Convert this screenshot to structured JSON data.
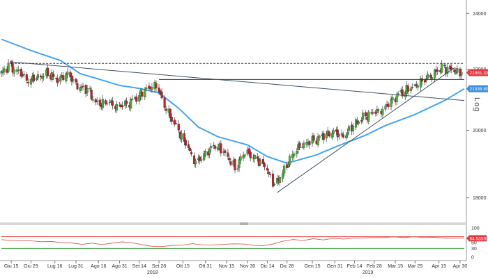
{
  "toolbar": {
    "icons": [
      "plus-icon",
      "pencil-icon",
      "zoom-icon",
      "magnifier-icon"
    ],
    "badge": "0"
  },
  "price_axis": {
    "scale": "log",
    "label": "Log",
    "ticks": [
      "24000",
      "22000",
      "20000",
      "18000"
    ],
    "current_price": "21881.3301",
    "ma_value": "21338.8008",
    "current_color": "#e8383d",
    "ma_color": "#3a8fe0"
  },
  "rsi_axis": {
    "ticks": [
      "100",
      "50",
      "30",
      "0"
    ],
    "value": "64.5359",
    "levels": [
      70,
      30
    ]
  },
  "x_axis": {
    "labels": [
      "Giu 15",
      "Giu 29",
      "Lug 16",
      "Lug 31",
      "Ago 16",
      "Ago 31",
      "Set 14",
      "Set 28",
      "Ott 15",
      "Ott 31",
      "Nov 15",
      "Nov 30",
      "Dic 14",
      "Dic 28",
      "Gen 15",
      "Gen 31",
      "Feb 14",
      "Feb 28",
      "Mar 15",
      "Mar 29",
      "Apr 15",
      "Apr 30"
    ],
    "years": [
      "2018",
      "2019"
    ]
  },
  "colors": {
    "up_candle": "#4caa3a",
    "down_candle": "#b8232a",
    "moving_average": "#42a5f5",
    "trendline": "#3d4f63",
    "rsi_line": "#e25757",
    "rsi_upper": "#e53935",
    "rsi_lower": "#43a047"
  },
  "chart_data": {
    "type": "candlestick",
    "y_scale": "log",
    "ylim": [
      17400,
      24400
    ],
    "x_range": [
      "2018-06-08",
      "2019-05-03"
    ],
    "close_series": [
      {
        "date": "2018-06-08",
        "close": 21800
      },
      {
        "date": "2018-06-15",
        "close": 22100
      },
      {
        "date": "2018-06-22",
        "close": 21900
      },
      {
        "date": "2018-06-29",
        "close": 21600
      },
      {
        "date": "2018-07-06",
        "close": 21750
      },
      {
        "date": "2018-07-13",
        "close": 21850
      },
      {
        "date": "2018-07-20",
        "close": 21650
      },
      {
        "date": "2018-07-27",
        "close": 21850
      },
      {
        "date": "2018-08-03",
        "close": 21400
      },
      {
        "date": "2018-08-10",
        "close": 21300
      },
      {
        "date": "2018-08-17",
        "close": 20800
      },
      {
        "date": "2018-08-24",
        "close": 20900
      },
      {
        "date": "2018-08-31",
        "close": 20750
      },
      {
        "date": "2018-09-07",
        "close": 20850
      },
      {
        "date": "2018-09-14",
        "close": 21050
      },
      {
        "date": "2018-09-21",
        "close": 21350
      },
      {
        "date": "2018-09-28",
        "close": 21450
      },
      {
        "date": "2018-10-05",
        "close": 20650
      },
      {
        "date": "2018-10-12",
        "close": 20100
      },
      {
        "date": "2018-10-19",
        "close": 19550
      },
      {
        "date": "2018-10-26",
        "close": 19000
      },
      {
        "date": "2018-11-02",
        "close": 19300
      },
      {
        "date": "2018-11-09",
        "close": 19550
      },
      {
        "date": "2018-11-16",
        "close": 19300
      },
      {
        "date": "2018-11-23",
        "close": 18850
      },
      {
        "date": "2018-11-30",
        "close": 19350
      },
      {
        "date": "2018-12-07",
        "close": 19150
      },
      {
        "date": "2018-12-14",
        "close": 18900
      },
      {
        "date": "2018-12-21",
        "close": 18350
      },
      {
        "date": "2018-12-28",
        "close": 18800
      },
      {
        "date": "2019-01-04",
        "close": 19350
      },
      {
        "date": "2019-01-11",
        "close": 19600
      },
      {
        "date": "2019-01-18",
        "close": 19700
      },
      {
        "date": "2019-01-25",
        "close": 19850
      },
      {
        "date": "2019-02-01",
        "close": 19950
      },
      {
        "date": "2019-02-08",
        "close": 19800
      },
      {
        "date": "2019-02-15",
        "close": 20150
      },
      {
        "date": "2019-02-22",
        "close": 20400
      },
      {
        "date": "2019-03-01",
        "close": 20550
      },
      {
        "date": "2019-03-08",
        "close": 20650
      },
      {
        "date": "2019-03-15",
        "close": 21000
      },
      {
        "date": "2019-03-22",
        "close": 21250
      },
      {
        "date": "2019-03-29",
        "close": 21400
      },
      {
        "date": "2019-04-05",
        "close": 21600
      },
      {
        "date": "2019-04-12",
        "close": 21800
      },
      {
        "date": "2019-04-19",
        "close": 22050
      },
      {
        "date": "2019-04-26",
        "close": 21950
      },
      {
        "date": "2019-05-03",
        "close": 21881.33
      }
    ],
    "moving_average": [
      {
        "date": "2018-06-08",
        "value": 23050
      },
      {
        "date": "2018-06-29",
        "value": 22650
      },
      {
        "date": "2018-07-20",
        "value": 22300
      },
      {
        "date": "2018-08-03",
        "value": 21850
      },
      {
        "date": "2018-08-17",
        "value": 21650
      },
      {
        "date": "2018-08-31",
        "value": 21450
      },
      {
        "date": "2018-09-14",
        "value": 21350
      },
      {
        "date": "2018-09-28",
        "value": 21200
      },
      {
        "date": "2018-10-12",
        "value": 20700
      },
      {
        "date": "2018-10-26",
        "value": 20100
      },
      {
        "date": "2018-11-09",
        "value": 19800
      },
      {
        "date": "2018-11-30",
        "value": 19550
      },
      {
        "date": "2018-12-14",
        "value": 19200
      },
      {
        "date": "2018-12-28",
        "value": 19000
      },
      {
        "date": "2019-01-18",
        "value": 19250
      },
      {
        "date": "2019-02-01",
        "value": 19500
      },
      {
        "date": "2019-02-22",
        "value": 19850
      },
      {
        "date": "2019-03-08",
        "value": 20150
      },
      {
        "date": "2019-03-29",
        "value": 20500
      },
      {
        "date": "2019-04-19",
        "value": 20950
      },
      {
        "date": "2019-05-03",
        "value": 21338.8
      }
    ],
    "horizontal_lines": [
      {
        "value": 22200,
        "style": "dashed"
      },
      {
        "value": 21650,
        "style": "solid"
      }
    ],
    "trendlines": [
      {
        "from": {
          "date": "2018-06-15",
          "value": 22250
        },
        "to": {
          "date": "2019-05-03",
          "value": 20950
        }
      },
      {
        "from": {
          "date": "2018-12-21",
          "value": 18150
        },
        "to": {
          "date": "2019-04-26",
          "value": 22050
        }
      }
    ],
    "rsi": {
      "values": [
        60,
        58,
        55,
        57,
        52,
        54,
        50,
        48,
        45,
        47,
        44,
        48,
        52,
        50,
        42,
        38,
        36,
        40,
        42,
        45,
        43,
        41,
        44,
        46,
        44,
        42,
        38,
        46,
        55,
        60,
        58,
        62,
        60,
        64,
        62,
        66,
        65,
        68,
        66,
        70,
        67,
        69,
        68,
        67,
        66,
        65,
        64.5359
      ],
      "ylim": [
        0,
        100
      ],
      "upper_level": 70,
      "lower_level": 30
    }
  }
}
